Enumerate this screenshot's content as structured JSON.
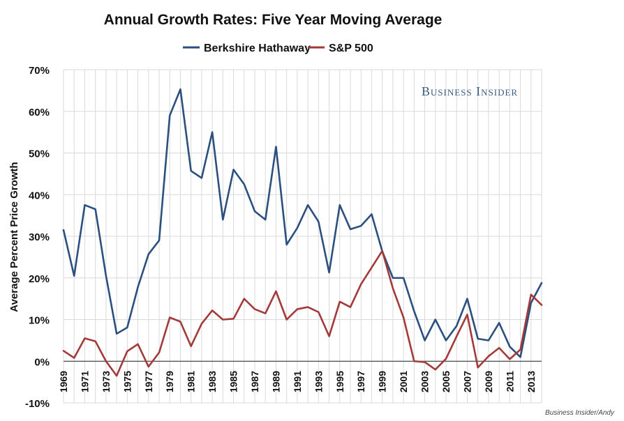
{
  "chart_data": {
    "type": "line",
    "title": "Annual Growth Rates: Five Year Moving Average",
    "ylabel": "Average Percent Price Growth",
    "xlabel": "",
    "ylim": [
      -10,
      70
    ],
    "yticks": [
      "70%",
      "60%",
      "50%",
      "40%",
      "30%",
      "20%",
      "10%",
      "0%",
      "-10%"
    ],
    "ytick_values": [
      70,
      60,
      50,
      40,
      30,
      20,
      10,
      0,
      -10
    ],
    "x": [
      1969,
      1970,
      1971,
      1972,
      1973,
      1974,
      1975,
      1976,
      1977,
      1978,
      1979,
      1980,
      1981,
      1982,
      1983,
      1984,
      1985,
      1986,
      1987,
      1988,
      1989,
      1990,
      1991,
      1992,
      1993,
      1994,
      1995,
      1996,
      1997,
      1998,
      1999,
      2000,
      2001,
      2002,
      2003,
      2004,
      2005,
      2006,
      2007,
      2008,
      2009,
      2010,
      2011,
      2012,
      2013,
      2014
    ],
    "xtick_labels": [
      "1969",
      "1971",
      "1973",
      "1975",
      "1977",
      "1979",
      "1981",
      "1983",
      "1985",
      "1987",
      "1989",
      "1991",
      "1993",
      "1995",
      "1997",
      "1999",
      "2001",
      "2003",
      "2005",
      "2007",
      "2009",
      "2011",
      "2013"
    ],
    "legend_position": "top-center",
    "grid": true,
    "series": [
      {
        "name": "Berkshire Hathaway",
        "color": "#2b4f7e",
        "values": [
          31.5,
          20.5,
          37.5,
          36.5,
          20.5,
          6.6,
          8.1,
          17.8,
          25.7,
          29,
          59,
          65.3,
          45.7,
          44,
          55,
          34,
          46,
          42.5,
          36,
          34,
          51.5,
          28,
          32,
          37.5,
          33.5,
          21.3,
          37.5,
          31.7,
          32.5,
          35.3,
          26.4,
          20,
          20,
          12,
          5,
          10,
          5,
          8.5,
          15,
          5.4,
          5,
          9.2,
          3.5,
          1,
          14,
          18.8
        ]
      },
      {
        "name": "S&P 500",
        "color": "#a33a3a",
        "values": [
          2.5,
          0.8,
          5.5,
          4.8,
          0,
          -3.5,
          2.4,
          4.1,
          -1.3,
          2.1,
          10.5,
          9.5,
          3.6,
          9,
          12.2,
          10,
          10.2,
          15,
          12.5,
          11.5,
          16.8,
          10,
          12.5,
          13,
          11.8,
          6,
          14.3,
          13,
          18.5,
          22.5,
          26.5,
          17.5,
          10.5,
          0,
          -0.2,
          -2,
          0.6,
          6,
          11.2,
          -1.5,
          1.2,
          3.2,
          0.5,
          2.8,
          16,
          13.5
        ]
      }
    ]
  },
  "watermark": "Business Insider",
  "credit": "Business Insider/Andy"
}
